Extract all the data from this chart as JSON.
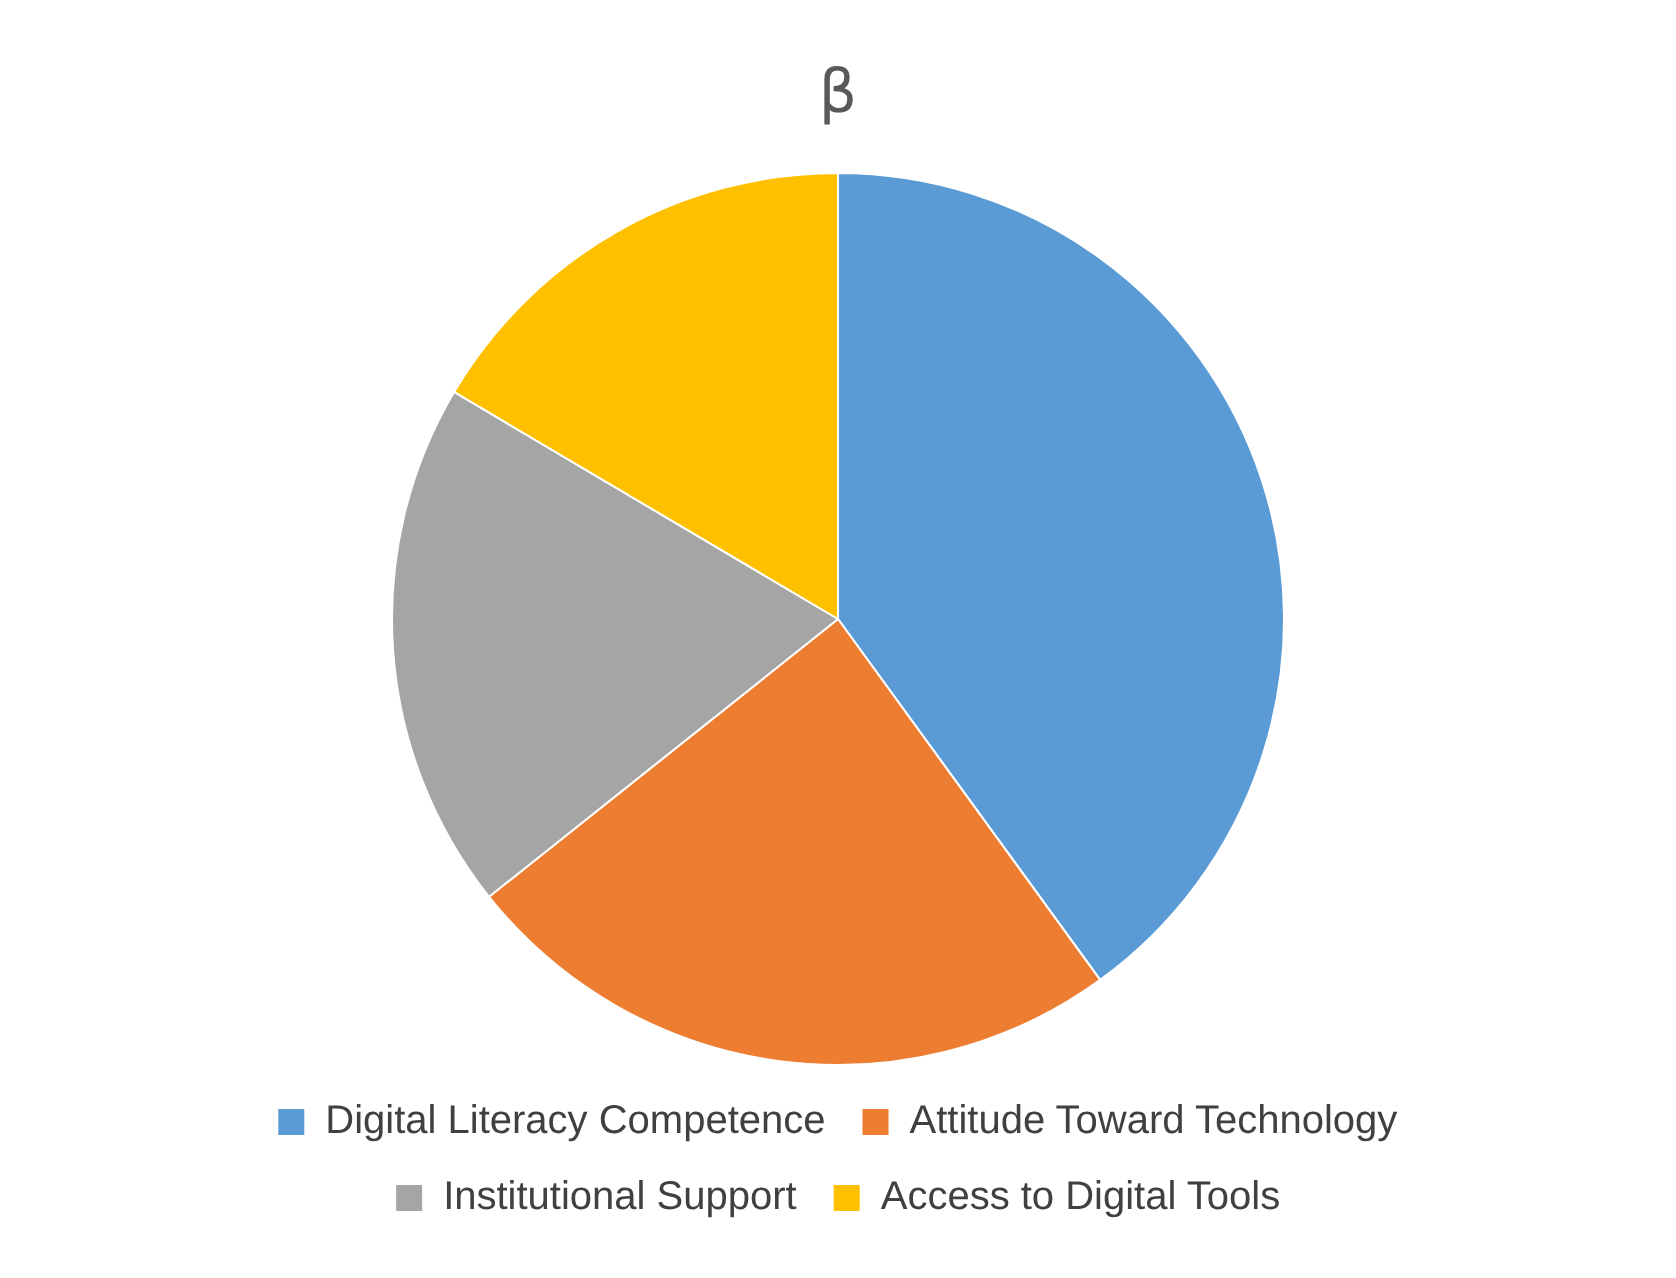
{
  "chart_data": {
    "type": "pie",
    "title": "β",
    "categories": [
      "Digital Literacy Competence",
      "Attitude Toward Technology",
      "Institutional Support",
      "Access to Digital Tools"
    ],
    "values": [
      40,
      24.3,
      19.2,
      16.5
    ],
    "colors": [
      "#5b9bd5",
      "#ed7d31",
      "#a5a5a5",
      "#ffc000"
    ],
    "legend": "bottom"
  }
}
